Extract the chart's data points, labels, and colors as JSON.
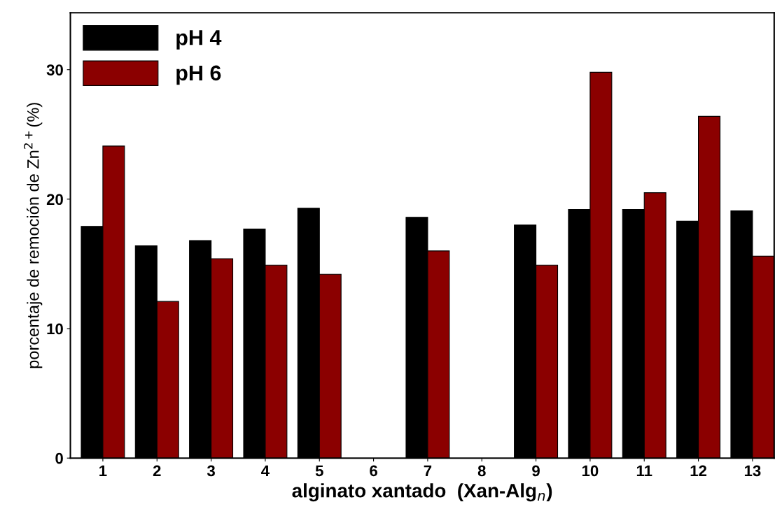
{
  "chart_data": {
    "type": "bar",
    "xlabel": "alginato xantado  (Xan-Alg$_{n}$)",
    "ylabel": "porcentaje de remoción de Zn$^{2+}$(%)",
    "categories": [
      "1",
      "2",
      "3",
      "4",
      "5",
      "6",
      "7",
      "8",
      "9",
      "10",
      "11",
      "12",
      "13"
    ],
    "series": [
      {
        "name": "pH 4",
        "color": "#000000",
        "values": [
          17.9,
          16.4,
          16.8,
          17.7,
          19.3,
          null,
          18.6,
          null,
          18.0,
          19.2,
          19.2,
          18.3,
          19.1
        ]
      },
      {
        "name": "pH 6",
        "color": "#8b0000",
        "values": [
          24.1,
          12.1,
          15.4,
          14.9,
          14.2,
          null,
          16.0,
          null,
          14.9,
          29.8,
          20.5,
          26.4,
          15.6
        ]
      }
    ],
    "ylim": [
      0,
      34.4
    ],
    "yticks": [
      0,
      10,
      20,
      30
    ],
    "grid": false,
    "legend": "top left"
  }
}
